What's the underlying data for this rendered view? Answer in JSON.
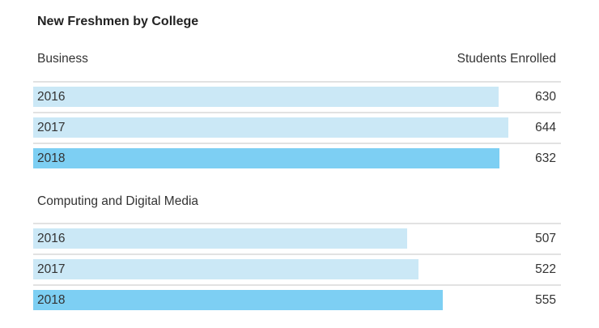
{
  "chart_data": {
    "type": "bar",
    "title": "New Freshmen by College",
    "value_header": "Students Enrolled",
    "colors": {
      "prior_years": "#cbe8f6",
      "latest_year": "#7dcff3"
    },
    "groups": [
      {
        "name": "Business",
        "categories": [
          "2016",
          "2017",
          "2018"
        ],
        "values": [
          630,
          644,
          632
        ]
      },
      {
        "name": "Computing and Digital Media",
        "categories": [
          "2016",
          "2017",
          "2018"
        ],
        "values": [
          507,
          522,
          555
        ]
      }
    ]
  }
}
